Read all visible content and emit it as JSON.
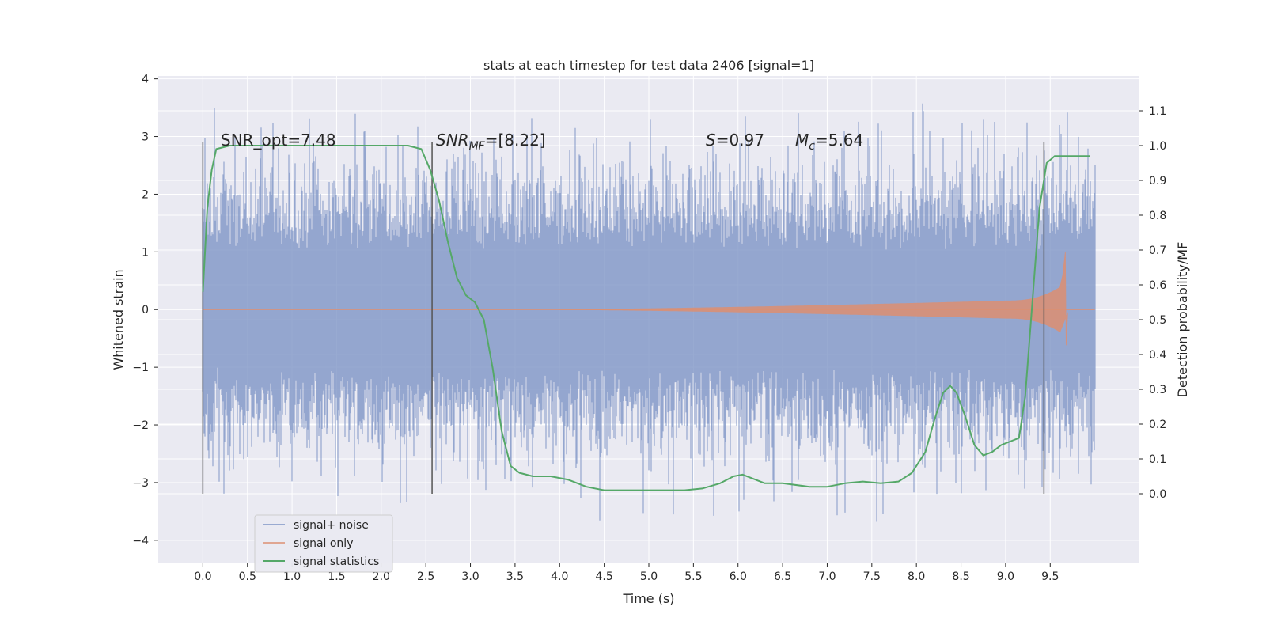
{
  "chart_data": {
    "type": "line",
    "title": "stats at each timestep for test data 2406 [signal=1]",
    "xlabel": "Time (s)",
    "ylabel": "Whitened strain",
    "y2label": "Detection probability/MF",
    "xlim": [
      -0.5,
      10.5
    ],
    "ylim": [
      -4.4,
      4.05
    ],
    "y2lim": [
      -0.2,
      1.2
    ],
    "xticks": [
      "0.0",
      "0.5",
      "1.0",
      "1.5",
      "2.0",
      "2.5",
      "3.0",
      "3.5",
      "4.0",
      "4.5",
      "5.0",
      "5.5",
      "6.0",
      "6.5",
      "7.0",
      "7.5",
      "8.0",
      "8.5",
      "9.0",
      "9.5"
    ],
    "yticks": [
      "4",
      "3",
      "2",
      "1",
      "0",
      "−1",
      "−2",
      "−3",
      "−4"
    ],
    "y2ticks": [
      "1.1",
      "1.0",
      "0.9",
      "0.8",
      "0.7",
      "0.6",
      "0.5",
      "0.4",
      "0.3",
      "0.2",
      "0.1",
      "0.0"
    ],
    "grid": true,
    "legend_position": "lower-left",
    "legend": [
      "signal+ noise",
      "signal only",
      "signal statistics"
    ],
    "annotations": {
      "snr_opt": "SNR_opt=7.48",
      "snr_mf_label": "SNR",
      "snr_mf_sub": "MF",
      "snr_mf_value": "=[8.22]",
      "s_label": "S",
      "s_value": "=0.97",
      "mc_label": "M",
      "mc_sub": "c",
      "mc_value": "=5.64"
    },
    "vlines_x": [
      0.0,
      2.57,
      9.43
    ],
    "series": [
      {
        "name": "signal+ noise",
        "color": "#7e95c6",
        "envelope": {
          "x_start": 0.0,
          "x_end": 10.0,
          "typical_amplitude": 1.0,
          "max_excursion": 3.7,
          "min_excursion": -4.0
        }
      },
      {
        "name": "signal only",
        "color": "#dd8f72",
        "chirp": {
          "x_start": 4.0,
          "x_merger": 9.67,
          "amplitude_at_9": 0.15,
          "peak_amplitude": 1.0,
          "peak_min": -0.62
        }
      },
      {
        "name": "signal statistics",
        "color": "#55a868",
        "axis": "right",
        "x": [
          0.0,
          0.05,
          0.1,
          0.15,
          0.3,
          0.5,
          1.0,
          1.5,
          2.0,
          2.3,
          2.45,
          2.55,
          2.65,
          2.75,
          2.85,
          2.95,
          3.05,
          3.15,
          3.25,
          3.35,
          3.45,
          3.55,
          3.7,
          3.9,
          4.1,
          4.3,
          4.5,
          4.8,
          5.1,
          5.4,
          5.6,
          5.8,
          5.95,
          6.05,
          6.15,
          6.3,
          6.5,
          6.8,
          7.0,
          7.2,
          7.4,
          7.6,
          7.8,
          7.95,
          8.1,
          8.2,
          8.3,
          8.38,
          8.45,
          8.55,
          8.65,
          8.75,
          8.85,
          8.95,
          9.05,
          9.15,
          9.22,
          9.3,
          9.38,
          9.46,
          9.55,
          9.65,
          9.8,
          9.95
        ],
        "values": [
          0.58,
          0.82,
          0.93,
          0.99,
          1.0,
          1.0,
          1.0,
          1.0,
          1.0,
          1.0,
          0.99,
          0.93,
          0.84,
          0.72,
          0.62,
          0.57,
          0.55,
          0.5,
          0.36,
          0.18,
          0.08,
          0.06,
          0.05,
          0.05,
          0.04,
          0.02,
          0.01,
          0.01,
          0.01,
          0.01,
          0.015,
          0.03,
          0.05,
          0.055,
          0.045,
          0.03,
          0.03,
          0.02,
          0.02,
          0.03,
          0.035,
          0.03,
          0.035,
          0.06,
          0.12,
          0.21,
          0.29,
          0.31,
          0.29,
          0.22,
          0.14,
          0.11,
          0.12,
          0.14,
          0.15,
          0.16,
          0.28,
          0.55,
          0.82,
          0.95,
          0.97,
          0.97,
          0.97,
          0.97
        ]
      }
    ]
  }
}
